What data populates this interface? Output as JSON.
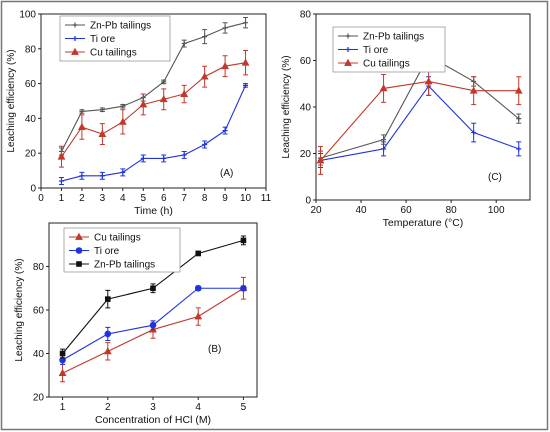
{
  "colors": {
    "zn_pb": "#555555",
    "ti": "#1f33e0",
    "cu": "#c0392b",
    "frame": "#222222",
    "outer_border": "#777777"
  },
  "chart_data": [
    {
      "id": "A",
      "type": "line",
      "panel_label": "(A)",
      "xlabel": "Time (h)",
      "ylabel": "Leaching efficiency (%)",
      "xlim": [
        0,
        11
      ],
      "ylim": [
        0,
        100
      ],
      "xticks": [
        0,
        1,
        2,
        3,
        4,
        5,
        6,
        7,
        8,
        9,
        10,
        11
      ],
      "yticks": [
        0,
        20,
        40,
        60,
        80,
        100
      ],
      "legend_position": "top-left",
      "grid": false,
      "series": [
        {
          "name": "Zn-Pb tailings",
          "marker": "plus",
          "color": "#555555",
          "x": [
            1,
            2,
            3,
            4,
            5,
            6,
            7,
            8,
            9,
            10
          ],
          "y": [
            21,
            44,
            45,
            47,
            52,
            61,
            83,
            87,
            92,
            95
          ],
          "err": [
            2,
            1,
            1,
            1,
            2,
            1,
            2,
            4,
            3,
            3
          ]
        },
        {
          "name": "Ti ore",
          "marker": "plus",
          "color": "#1f33e0",
          "x": [
            1,
            2,
            3,
            4,
            5,
            6,
            7,
            8,
            9,
            10
          ],
          "y": [
            4,
            7,
            7,
            9,
            17,
            17,
            19,
            25,
            33,
            59
          ],
          "err": [
            2,
            2,
            2,
            2,
            2,
            2,
            2,
            2,
            2,
            1
          ]
        },
        {
          "name": "Cu tailings",
          "marker": "triangle",
          "color": "#c0392b",
          "x": [
            1,
            2,
            3,
            4,
            5,
            6,
            7,
            8,
            9,
            10
          ],
          "y": [
            18,
            35,
            31,
            38,
            48,
            51,
            54,
            64,
            70,
            72
          ],
          "err": [
            6,
            7,
            6,
            7,
            6,
            6,
            5,
            6,
            6,
            7
          ]
        }
      ]
    },
    {
      "id": "C",
      "type": "line",
      "panel_label": "(C)",
      "xlabel": "Temperature (°C)",
      "ylabel": "Leaching efficiency (%)",
      "xlim": [
        20,
        115
      ],
      "ylim": [
        0,
        80
      ],
      "xticks": [
        20,
        40,
        60,
        80,
        100
      ],
      "yticks": [
        0,
        20,
        40,
        60,
        80
      ],
      "legend_position": "top-left",
      "grid": false,
      "series": [
        {
          "name": "Zn-Pb tailings",
          "marker": "plus",
          "color": "#555555",
          "x": [
            22,
            50,
            70,
            90,
            110
          ],
          "y": [
            18,
            26,
            62,
            51,
            35
          ],
          "err": [
            3,
            2,
            4,
            2,
            2
          ]
        },
        {
          "name": "Ti ore",
          "marker": "plus",
          "color": "#1f33e0",
          "x": [
            22,
            50,
            70,
            90,
            110
          ],
          "y": [
            17,
            22,
            49,
            29,
            22
          ],
          "err": [
            3,
            3,
            4,
            4,
            3
          ]
        },
        {
          "name": "Cu tailings",
          "marker": "triangle",
          "color": "#c0392b",
          "x": [
            22,
            50,
            70,
            90,
            110
          ],
          "y": [
            17,
            48,
            51,
            47,
            47
          ],
          "err": [
            6,
            6,
            6,
            6,
            6
          ]
        }
      ]
    },
    {
      "id": "B",
      "type": "line",
      "panel_label": "(B)",
      "xlabel": "Concentration of HCl (M)",
      "ylabel": "Leaching efficiency (%)",
      "xlim": [
        0.7,
        5.3
      ],
      "ylim": [
        20,
        100
      ],
      "xticks": [
        1,
        2,
        3,
        4,
        5
      ],
      "yticks": [
        20,
        40,
        60,
        80
      ],
      "legend_position": "top-left",
      "grid": false,
      "series": [
        {
          "name": "Cu tailings",
          "marker": "triangle",
          "color": "#c0392b",
          "x": [
            1,
            2,
            3,
            4,
            5
          ],
          "y": [
            31,
            41,
            51,
            57,
            70
          ],
          "err": [
            4,
            4,
            4,
            4,
            5
          ]
        },
        {
          "name": "Ti ore",
          "marker": "circle",
          "color": "#1f33e0",
          "x": [
            1,
            2,
            3,
            4,
            5
          ],
          "y": [
            37,
            49,
            53,
            70,
            70
          ],
          "err": [
            2,
            3,
            2,
            1,
            1
          ]
        },
        {
          "name": "Zn-Pb tailings",
          "marker": "square",
          "color": "#111111",
          "x": [
            1,
            2,
            3,
            4,
            5
          ],
          "y": [
            40,
            65,
            70,
            86,
            92
          ],
          "err": [
            2,
            4,
            2,
            1,
            2
          ]
        }
      ]
    }
  ]
}
